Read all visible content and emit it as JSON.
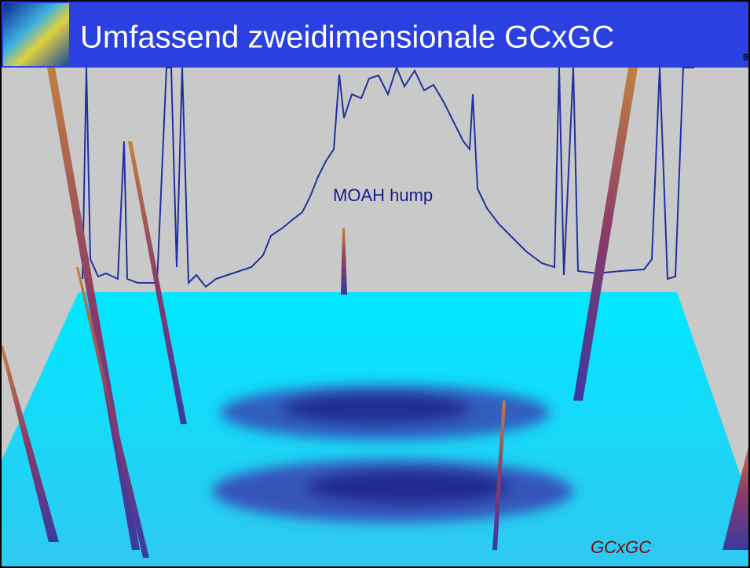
{
  "header": {
    "title": "Umfassend zweidimensionale GCxGC",
    "page_number": "9"
  },
  "annotations": {
    "hump_label": "MOAH hump",
    "plot_label": "GCxGC"
  }
}
